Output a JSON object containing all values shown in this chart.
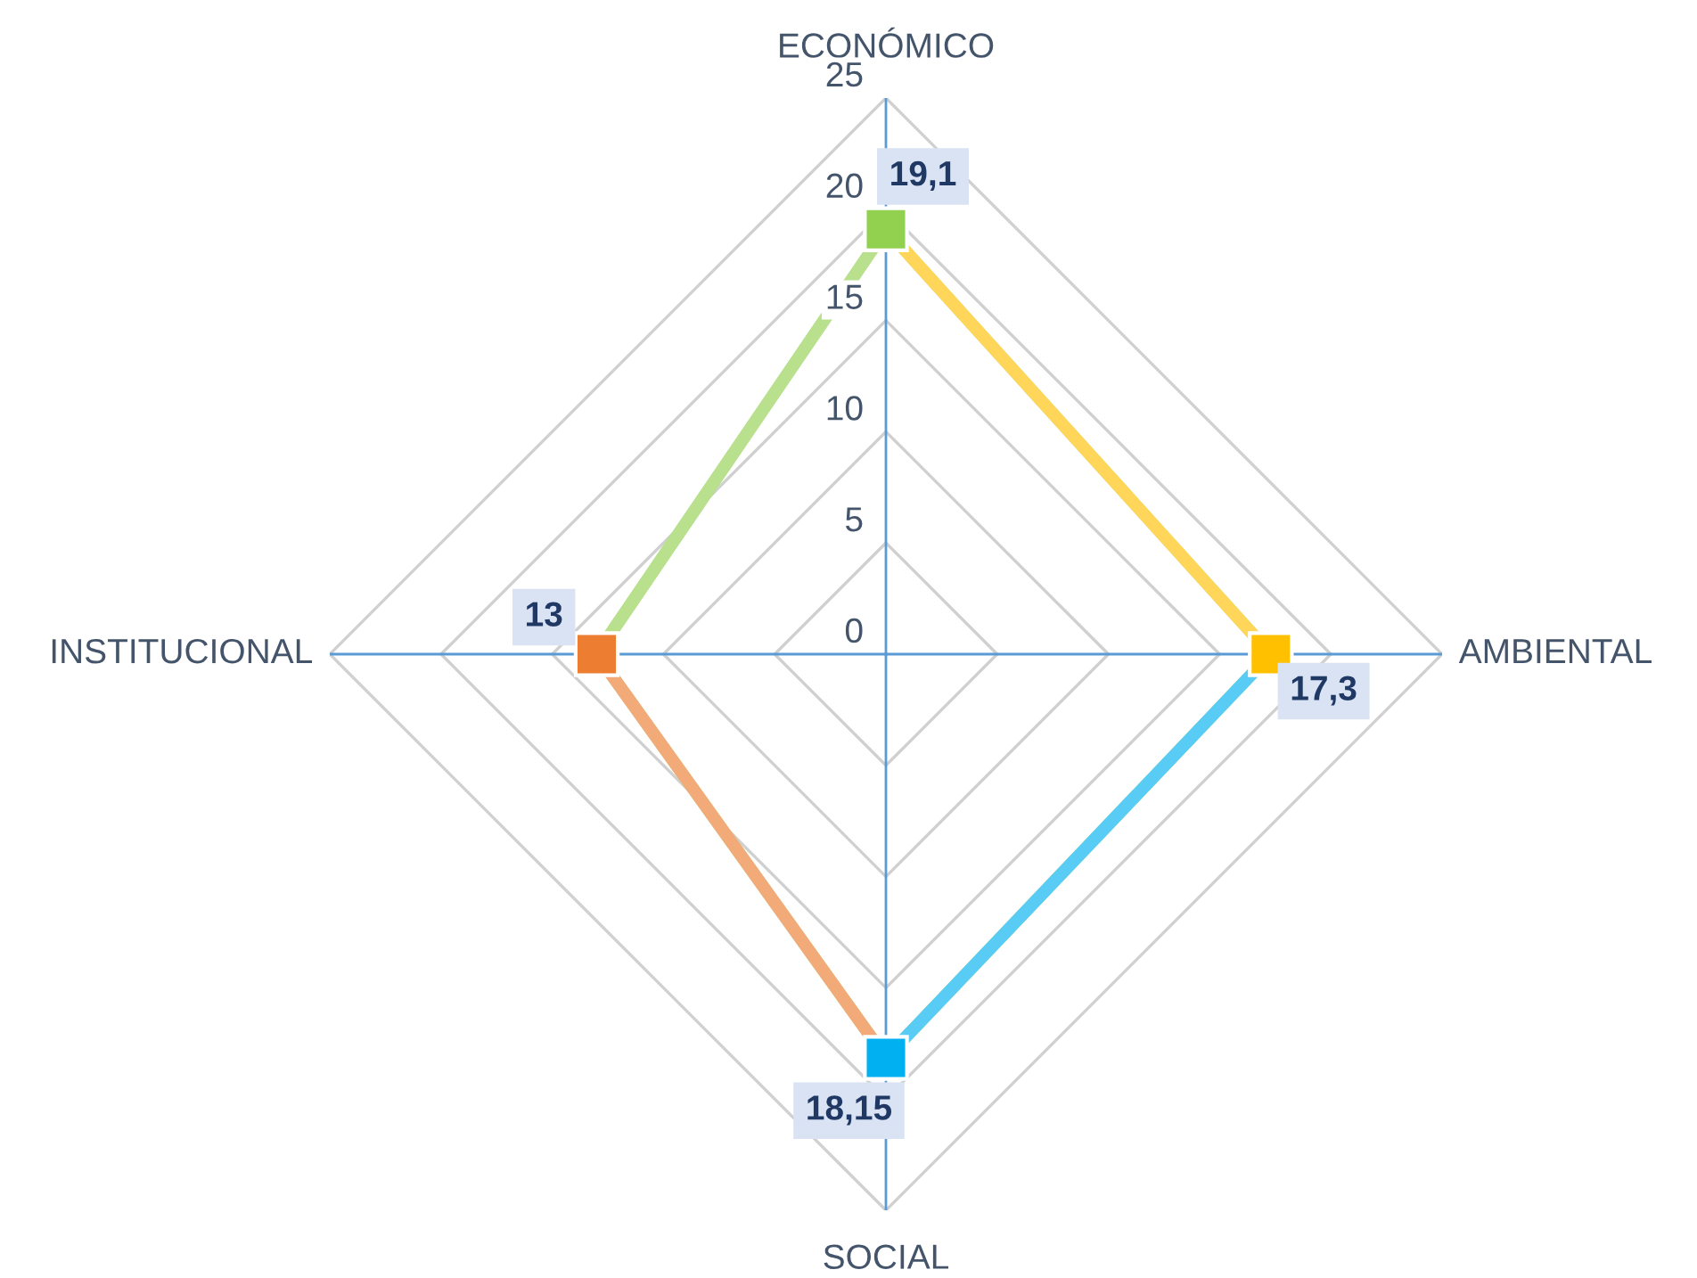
{
  "chart_data": {
    "type": "radar",
    "categories": [
      "ECONÓMICO",
      "AMBIENTAL",
      "SOCIAL",
      "INSTITUCIONAL"
    ],
    "series": [
      {
        "values": [
          19.1,
          17.3,
          18.15,
          13
        ],
        "colors": [
          "#92d050",
          "#ffc000",
          "#00b0f0",
          "#ed7d31"
        ],
        "value_labels": [
          "19,1",
          "17,3",
          "18,15",
          "13"
        ]
      }
    ],
    "ylim": [
      0,
      25
    ],
    "yticks": [
      0,
      5,
      10,
      15,
      20,
      25
    ],
    "grid": true,
    "marker": "square",
    "line_style": "solid",
    "legend": false
  }
}
